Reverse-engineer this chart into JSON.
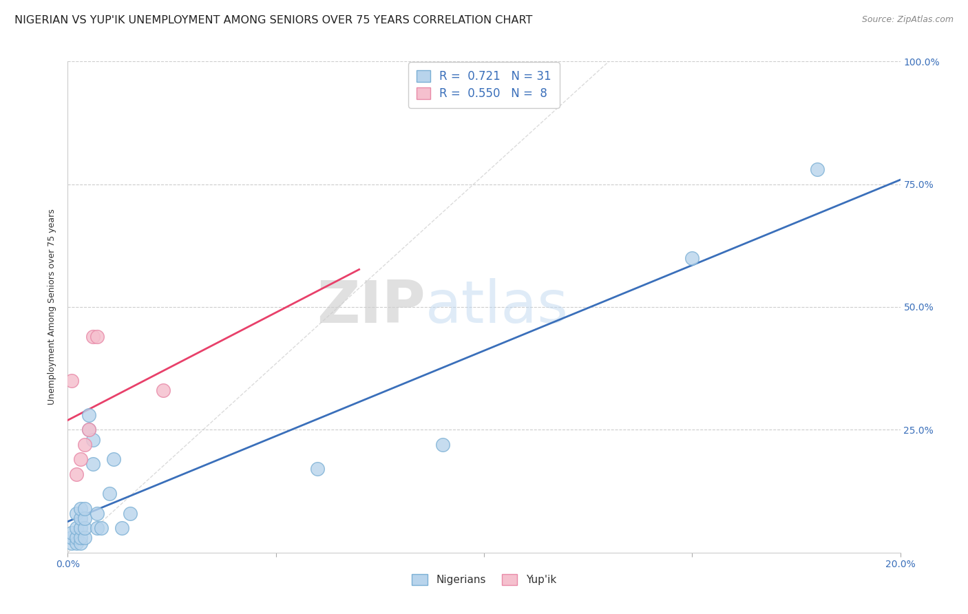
{
  "title": "NIGERIAN VS YUP'IK UNEMPLOYMENT AMONG SENIORS OVER 75 YEARS CORRELATION CHART",
  "source": "Source: ZipAtlas.com",
  "ylabel": "Unemployment Among Seniors over 75 years",
  "xlim": [
    0.0,
    0.2
  ],
  "ylim": [
    0.0,
    1.0
  ],
  "xticks": [
    0.0,
    0.05,
    0.1,
    0.15,
    0.2
  ],
  "yticks": [
    0.0,
    0.25,
    0.5,
    0.75,
    1.0
  ],
  "nigerian_x": [
    0.001,
    0.001,
    0.001,
    0.002,
    0.002,
    0.002,
    0.002,
    0.003,
    0.003,
    0.003,
    0.003,
    0.003,
    0.004,
    0.004,
    0.004,
    0.004,
    0.005,
    0.005,
    0.006,
    0.006,
    0.007,
    0.007,
    0.008,
    0.01,
    0.011,
    0.013,
    0.015,
    0.06,
    0.09,
    0.15,
    0.18
  ],
  "nigerian_y": [
    0.02,
    0.03,
    0.04,
    0.02,
    0.03,
    0.05,
    0.08,
    0.02,
    0.03,
    0.05,
    0.07,
    0.09,
    0.03,
    0.05,
    0.07,
    0.09,
    0.25,
    0.28,
    0.18,
    0.23,
    0.05,
    0.08,
    0.05,
    0.12,
    0.19,
    0.05,
    0.08,
    0.17,
    0.22,
    0.6,
    0.78
  ],
  "yupik_x": [
    0.001,
    0.002,
    0.003,
    0.004,
    0.005,
    0.006,
    0.007,
    0.023
  ],
  "yupik_y": [
    0.35,
    0.16,
    0.19,
    0.22,
    0.25,
    0.44,
    0.44,
    0.33
  ],
  "nigerian_color": "#b8d4ec",
  "nigerian_edge": "#7aafd4",
  "yupik_color": "#f5c0ce",
  "yupik_edge": "#e88aa8",
  "nigerian_line_color": "#3a6fba",
  "yupik_line_color": "#e8406a",
  "diagonal_color": "#cccccc",
  "R_nigerian": 0.721,
  "N_nigerian": 31,
  "R_yupik": 0.55,
  "N_yupik": 8,
  "legend_nigerian_label": "Nigerians",
  "legend_yupik_label": "Yup'ik",
  "title_fontsize": 11.5,
  "label_fontsize": 9,
  "tick_fontsize": 10,
  "source_fontsize": 9,
  "legend_fontsize": 12
}
